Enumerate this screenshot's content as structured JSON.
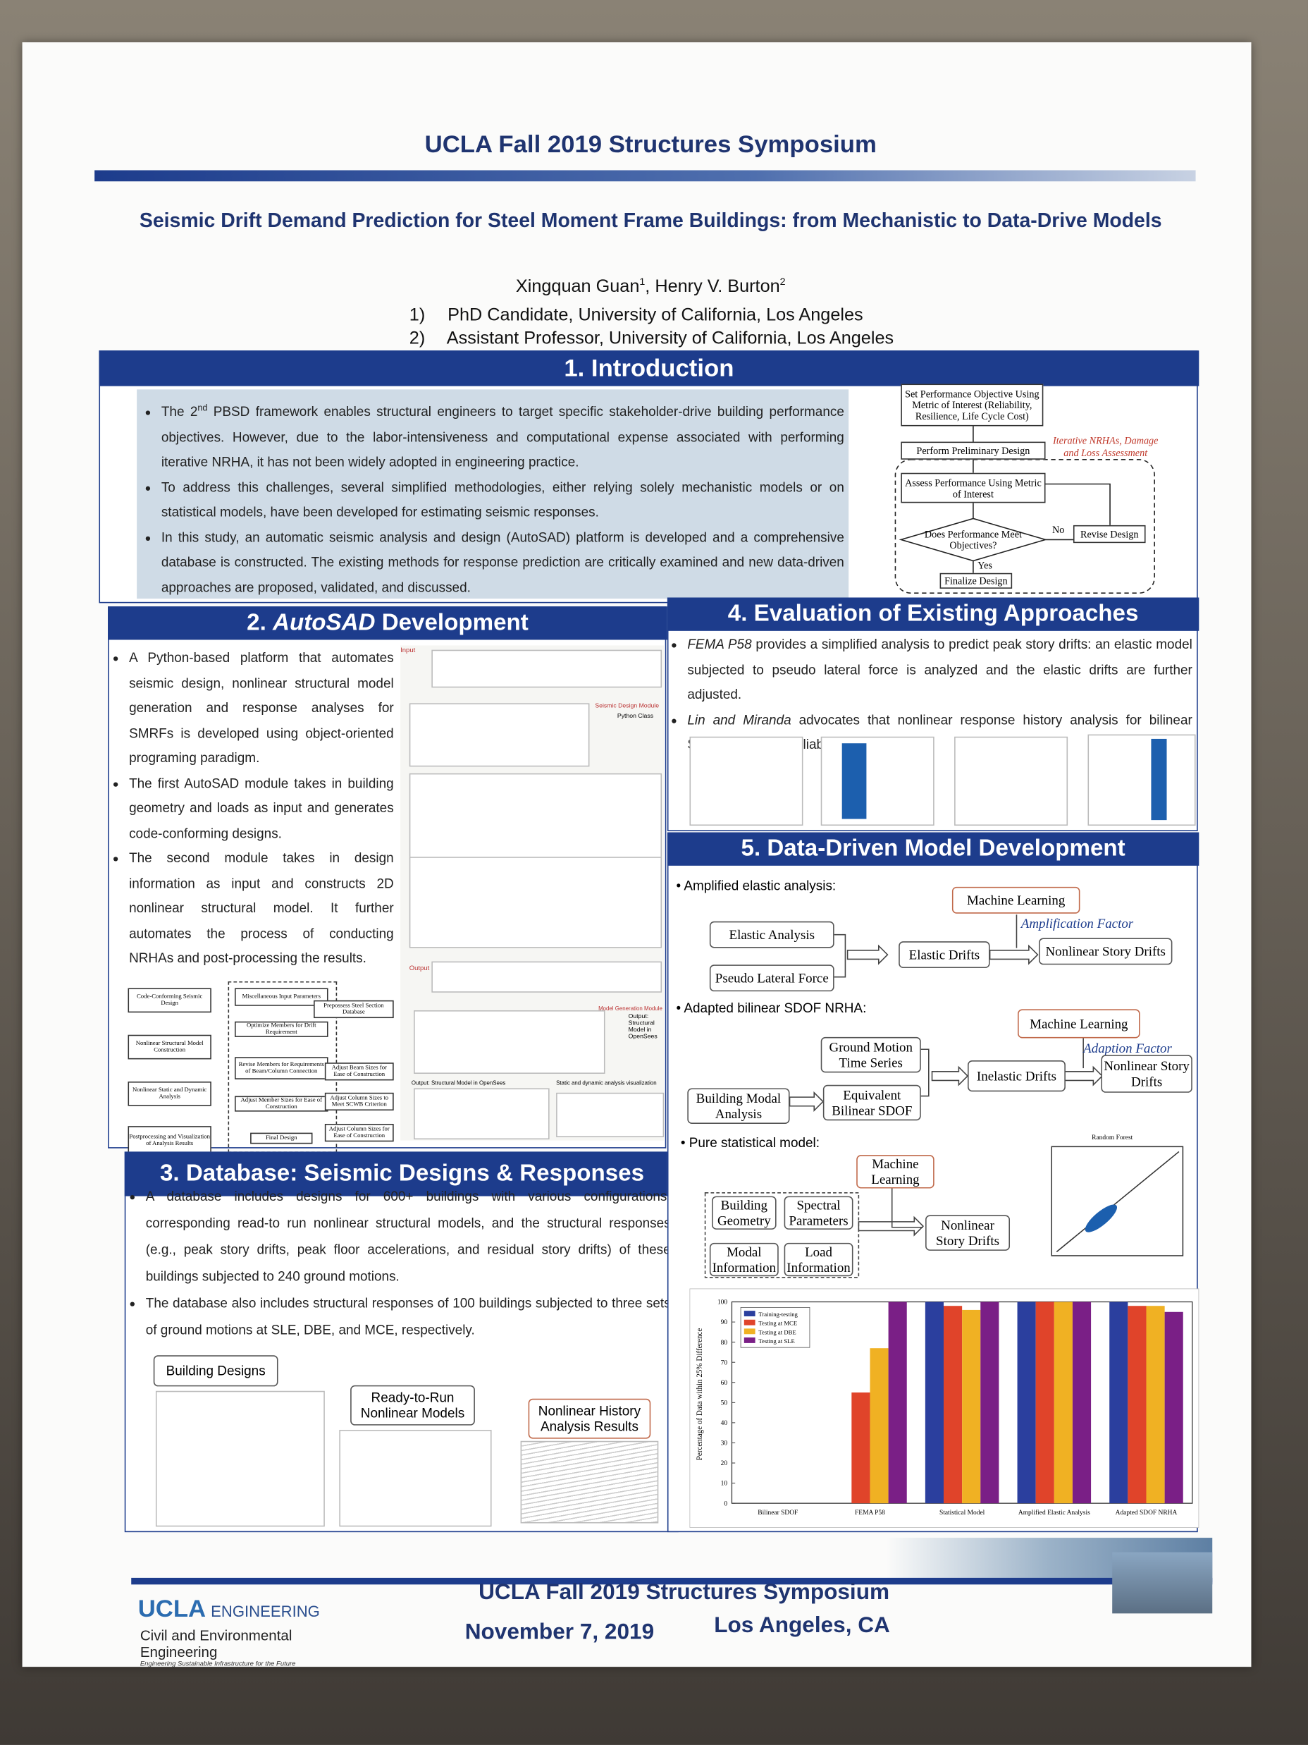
{
  "header": {
    "symposium": "UCLA Fall 2019 Structures Symposium",
    "title": "Seismic Drift Demand Prediction for Steel Moment Frame Buildings: from Mechanistic to Data-Drive Models",
    "authors": [
      {
        "name": "Xingquan Guan",
        "sup": "1"
      },
      {
        "name": "Henry V. Burton",
        "sup": "2"
      }
    ],
    "affiliations": [
      {
        "number": "1)",
        "text": "PhD Candidate, University of California, Los Angeles"
      },
      {
        "number": "2)",
        "text": "Assistant Professor, University of California, Los Angeles"
      }
    ]
  },
  "introduction": {
    "heading": "1. Introduction",
    "bullets": [
      {
        "before": "The 2",
        "sup": "nd",
        "after": " PBSD framework enables structural engineers to target specific stakeholder-drive building performance objectives. However, due to the labor-intensiveness and computational expense associated with performing iterative NRHA, it has not been widely adopted in engineering practice."
      },
      {
        "before": "To address this challenges, several simplified methodologies, either relying solely mechanistic models or on statistical models, have been developed for estimating seismic responses."
      },
      {
        "before": "In this study, an automatic seismic analysis and design (AutoSAD) platform is developed and a comprehensive database is constructed. The existing methods for response prediction are critically examined and new data-driven approaches are proposed, validated, and discussed."
      }
    ],
    "flowchart": {
      "nodes": [
        "Set Performance Objective Using Metric of Interest (Reliability, Resilience, Life Cycle Cost)",
        "Perform Preliminary Design",
        "Assess Performance Using Metric of Interest",
        "Does Performance Meet Objectives?",
        "Revise Design",
        "Finalize Design"
      ],
      "loop_label": "Iterative NRHAs, Damage and Loss Assessment",
      "no": "No",
      "yes": "Yes"
    }
  },
  "autosad": {
    "heading_number": "2.",
    "heading_em": "AutoSAD",
    "heading_rest": "Development",
    "bullets": [
      "A Python-based platform that automates seismic design, nonlinear structural model generation and response analyses for SMRFs is developed using object-oriented programing paradigm.",
      "The first AutoSAD module takes in building geometry and loads as input and generates code-conforming designs.",
      "The second module takes in design information as input and constructs 2D nonlinear structural model. It further automates the process of conducting NRHAs and post-processing the results."
    ],
    "workflow": [
      "Code-Conforming Seismic Design",
      "Nonlinear Structural Model Construction",
      "Nonlinear Static and Dynamic Analysis",
      "Postprocessing and Visualization of Analysis Results"
    ],
    "design_steps": [
      "Miscellaneous Input Parameters",
      "Optimize Members for Drift Requirement",
      "Revise Members for Requirements of Beam/Column Connection",
      "Adjust Member Sizes for Ease of Construction",
      "Final Design"
    ],
    "side_steps": [
      "Prepossess Steel Section Database",
      "Adjust Beam Sizes for Ease of Construction",
      "Adjust Column Sizes to Meet SCWB Criterion",
      "Adjust Column Sizes for Ease of Construction"
    ],
    "figure_labels": [
      "Input",
      "Seismic Design Module",
      "Python Class",
      "Output",
      "Model Generation Module",
      "Output: Structural Model in OpenSees",
      "Static and dynamic analysis visualization"
    ]
  },
  "database": {
    "heading": "3. Database: Seismic Designs & Responses",
    "bullets": [
      "A database includes designs for 600+ buildings with various configurations, corresponding read-to run nonlinear structural models, and the structural responses (e.g., peak story drifts, peak floor accelerations, and residual story drifts) of these buildings subjected to 240 ground motions.",
      "The database also includes structural responses of 100 buildings subjected to three sets of ground motions at SLE, DBE, and MCE, respectively."
    ],
    "labels": [
      "Building Designs",
      "Ready-to-Run Nonlinear Models",
      "Nonlinear History Analysis Results"
    ]
  },
  "evaluation": {
    "heading": "4. Evaluation of Existing Approaches",
    "bullets": [
      {
        "em": "FEMA P58",
        "text": " provides a simplified analysis to predict peak story drifts: an elastic model subjected to pseudo lateral force is analyzed and the elastic drifts are further adjusted."
      },
      {
        "em": "Lin and Miranda",
        "text": " advocates that nonlinear response history analysis for bilinear SDOF generates reliable drift prediction."
      }
    ]
  },
  "data_driven": {
    "heading": "5. Data-Driven Model Development",
    "amplified": {
      "label": "Amplified elastic analysis:",
      "nodes": [
        "Elastic Analysis",
        "Pseudo Lateral Force",
        "Elastic Drifts",
        "Machine Learning",
        "Amplification Factor",
        "Nonlinear Story Drifts"
      ]
    },
    "adapted": {
      "label": "Adapted bilinear SDOF NRHA:",
      "nodes": [
        "Ground Motion Time Series",
        "Building Modal Analysis",
        "Equivalent Bilinear SDOF",
        "Inelastic Drifts",
        "Machine Learning",
        "Adaption Factor",
        "Nonlinear Story Drifts"
      ]
    },
    "statistical": {
      "label": "Pure statistical model:",
      "nodes": [
        "Machine Learning",
        "Building Geometry",
        "Spectral Parameters",
        "Modal Information",
        "Load Information",
        "Nonlinear Story Drifts"
      ],
      "plot_title": "Random Forest"
    }
  },
  "chart_data": {
    "type": "bar",
    "ylabel": "Percentage of Data within 25% Difference",
    "categories": [
      "Bilinear SDOF",
      "FEMA P58",
      "Statistical Model",
      "Amplified Elastic Analysis",
      "Adapted SDOF NRHA"
    ],
    "series": [
      {
        "name": "Training-testing",
        "color": "#2b3f9e",
        "values": [
          null,
          null,
          100,
          100,
          100
        ]
      },
      {
        "name": "Testing at MCE",
        "color": "#e0442a",
        "values": [
          null,
          55,
          98,
          100,
          98
        ]
      },
      {
        "name": "Testing at DBE",
        "color": "#f0b123",
        "values": [
          null,
          77,
          96,
          100,
          98
        ]
      },
      {
        "name": "Testing at SLE",
        "color": "#7a1f86",
        "values": [
          null,
          100,
          100,
          100,
          95
        ]
      }
    ],
    "ylim": [
      0,
      100
    ],
    "yticks": [
      0,
      10,
      20,
      30,
      40,
      50,
      60,
      70,
      80,
      90,
      100
    ],
    "legend": "upper-left"
  },
  "footer": {
    "logo": "UCLA",
    "logo_sub": "ENGINEERING",
    "department": "Civil and Environmental Engineering",
    "tagline": "Engineering Sustainable Infrastructure for the Future",
    "event": "UCLA Fall 2019 Structures Symposium",
    "date": "November 7, 2019",
    "place": "Los Angeles, CA"
  }
}
